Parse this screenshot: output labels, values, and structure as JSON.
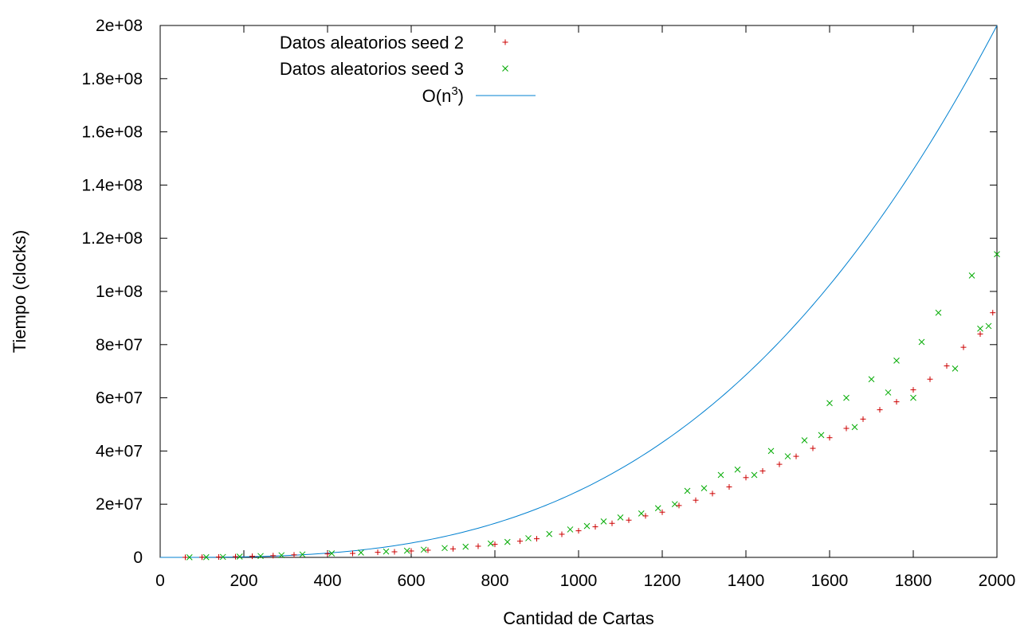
{
  "chart_data": {
    "type": "scatter",
    "title": "",
    "xlabel": "Cantidad de Cartas",
    "ylabel": "Tiempo (clocks)",
    "xlim": [
      0,
      2000
    ],
    "ylim": [
      0,
      200000000
    ],
    "x_ticks": [
      0,
      200,
      400,
      600,
      800,
      1000,
      1200,
      1400,
      1600,
      1800,
      2000
    ],
    "y_ticks": [
      0,
      20000000,
      40000000,
      60000000,
      80000000,
      100000000,
      120000000,
      140000000,
      160000000,
      180000000,
      200000000
    ],
    "x_tick_labels": [
      "0",
      "200",
      "400",
      "600",
      "800",
      "1000",
      "1200",
      "1400",
      "1600",
      "1800",
      "2000"
    ],
    "y_tick_labels": [
      "0",
      "2e+07",
      "4e+07",
      "6e+07",
      "8e+07",
      "1e+08",
      "1.2e+08",
      "1.4e+08",
      "1.6e+08",
      "1.8e+08",
      "2e+08"
    ],
    "grid": false,
    "legend_position": "top-left",
    "series": [
      {
        "name": "Datos aleatorios seed 2",
        "marker": "plus",
        "color": "#cc0000",
        "points": [
          [
            60,
            20000
          ],
          [
            100,
            60000
          ],
          [
            140,
            150000
          ],
          [
            180,
            280000
          ],
          [
            220,
            420000
          ],
          [
            270,
            650000
          ],
          [
            320,
            950000
          ],
          [
            400,
            1300000
          ],
          [
            460,
            1500000
          ],
          [
            520,
            1900000
          ],
          [
            560,
            2100000
          ],
          [
            600,
            2400000
          ],
          [
            640,
            2700000
          ],
          [
            700,
            3200000
          ],
          [
            760,
            4200000
          ],
          [
            800,
            4900000
          ],
          [
            860,
            6100000
          ],
          [
            900,
            7000000
          ],
          [
            960,
            8700000
          ],
          [
            1000,
            10000000
          ],
          [
            1040,
            11500000
          ],
          [
            1080,
            12800000
          ],
          [
            1120,
            14000000
          ],
          [
            1160,
            15600000
          ],
          [
            1200,
            17000000
          ],
          [
            1240,
            19500000
          ],
          [
            1280,
            21500000
          ],
          [
            1320,
            24000000
          ],
          [
            1360,
            26500000
          ],
          [
            1400,
            30000000
          ],
          [
            1440,
            32500000
          ],
          [
            1480,
            35000000
          ],
          [
            1520,
            38000000
          ],
          [
            1560,
            41000000
          ],
          [
            1600,
            45000000
          ],
          [
            1640,
            48500000
          ],
          [
            1680,
            52000000
          ],
          [
            1720,
            55500000
          ],
          [
            1760,
            58500000
          ],
          [
            1800,
            63000000
          ],
          [
            1840,
            67000000
          ],
          [
            1880,
            72000000
          ],
          [
            1920,
            79000000
          ],
          [
            1960,
            84000000
          ],
          [
            1990,
            92000000
          ]
        ]
      },
      {
        "name": "Datos aleatorios seed 3",
        "marker": "cross",
        "color": "#00aa00",
        "points": [
          [
            70,
            30000
          ],
          [
            110,
            80000
          ],
          [
            150,
            170000
          ],
          [
            190,
            300000
          ],
          [
            240,
            500000
          ],
          [
            290,
            800000
          ],
          [
            340,
            1100000
          ],
          [
            410,
            1500000
          ],
          [
            480,
            1800000
          ],
          [
            540,
            2200000
          ],
          [
            590,
            2500000
          ],
          [
            630,
            2900000
          ],
          [
            680,
            3500000
          ],
          [
            730,
            4000000
          ],
          [
            790,
            5200000
          ],
          [
            830,
            5800000
          ],
          [
            880,
            7200000
          ],
          [
            930,
            8800000
          ],
          [
            980,
            10500000
          ],
          [
            1020,
            11800000
          ],
          [
            1060,
            13500000
          ],
          [
            1100,
            15000000
          ],
          [
            1150,
            16500000
          ],
          [
            1190,
            18500000
          ],
          [
            1230,
            20000000
          ],
          [
            1260,
            25000000
          ],
          [
            1300,
            26000000
          ],
          [
            1340,
            31000000
          ],
          [
            1380,
            33000000
          ],
          [
            1420,
            31000000
          ],
          [
            1460,
            40000000
          ],
          [
            1500,
            38000000
          ],
          [
            1540,
            44000000
          ],
          [
            1580,
            46000000
          ],
          [
            1600,
            58000000
          ],
          [
            1640,
            60000000
          ],
          [
            1660,
            49000000
          ],
          [
            1700,
            67000000
          ],
          [
            1740,
            62000000
          ],
          [
            1760,
            74000000
          ],
          [
            1800,
            60000000
          ],
          [
            1820,
            81000000
          ],
          [
            1860,
            92000000
          ],
          [
            1900,
            71000000
          ],
          [
            1940,
            106000000
          ],
          [
            1960,
            86000000
          ],
          [
            1980,
            87000000
          ],
          [
            2000,
            114000000
          ]
        ]
      },
      {
        "name": "O(n",
        "name_sup": "3",
        "name_suffix": ")",
        "type": "line",
        "color": "#0080d0",
        "function": "2.5e-2 * x^3",
        "x_range": [
          0,
          2000
        ]
      }
    ]
  }
}
